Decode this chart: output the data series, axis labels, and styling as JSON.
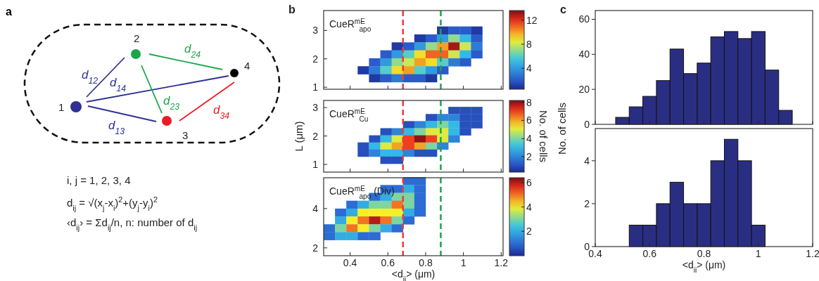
{
  "chart_data": [
    {
      "type": "other",
      "title": "a",
      "annotations": [
        "1",
        "2",
        "3",
        "4",
        "d$_{12}$",
        "d$_{14}$",
        "d$_{13}$",
        "d$_{23}$",
        "d$_{24}$",
        "d$_{34}$",
        "i, j = 1, 2, 3, 4",
        "d$_{ij}$ = √(x$_{j}$-x$_{i}$)$^{2}$+(y$_{j}$-y$_{i}$)$^{2}$",
        "‹d$_{ij}$› = Σd$_{ij}$/n, n: number of d$_{ij}$"
      ]
    },
    {
      "type": "scatter",
      "title": "b",
      "marker": "square",
      "annotations": [
        "CueR$^{mE}$$_{apo}$"
      ],
      "x": [
        0.89,
        0.95,
        1.01,
        1.07,
        0.77,
        0.83,
        0.89,
        0.95,
        1.01,
        1.07,
        0.65,
        0.71,
        0.77,
        0.83,
        0.89,
        0.95,
        1.01,
        1.07,
        0.59,
        0.65,
        0.71,
        0.77,
        0.83,
        0.89,
        0.95,
        1.01,
        1.07,
        0.53,
        0.59,
        0.65,
        0.71,
        0.77,
        0.83,
        0.89,
        0.95,
        1.01,
        0.47,
        0.53,
        0.59,
        0.65,
        0.71,
        0.77,
        0.83,
        0.89,
        0.53,
        0.59,
        0.65,
        0.71,
        0.77,
        0.83
      ],
      "values": [
        3,
        3,
        3,
        3,
        2.72,
        2.72,
        2.72,
        2.72,
        2.72,
        2.72,
        2.44,
        2.44,
        2.44,
        2.44,
        2.44,
        2.44,
        2.44,
        2.44,
        2.16,
        2.16,
        2.16,
        2.16,
        2.16,
        2.16,
        2.16,
        2.16,
        2.16,
        1.88,
        1.88,
        1.88,
        1.88,
        1.88,
        1.88,
        1.88,
        1.88,
        1.88,
        1.6,
        1.6,
        1.6,
        1.6,
        1.6,
        1.6,
        1.6,
        1.6,
        1.32,
        1.32,
        1.32,
        1.32,
        1.32,
        1.32
      ],
      "cvalues": [
        1,
        2,
        2,
        1,
        1,
        2,
        4,
        7,
        5,
        2,
        1,
        2,
        4,
        7,
        10,
        13,
        8,
        3,
        2,
        4,
        6,
        9,
        11,
        11,
        8,
        5,
        2,
        2,
        4,
        7,
        8,
        10,
        9,
        6,
        3,
        2,
        1,
        3,
        6,
        9,
        10,
        6,
        4,
        2,
        1,
        2,
        3,
        2,
        2,
        1
      ],
      "xlim": [
        0.26,
        1.21
      ],
      "ylim": [
        0.93,
        3.7
      ],
      "xticks": [
        0.4,
        0.6,
        0.8,
        1,
        1.2
      ],
      "yticks": [
        1,
        2,
        3
      ],
      "tick_labels": "y",
      "clim": [
        0.5,
        13.6
      ],
      "cticks": [
        4,
        8,
        12
      ],
      "ref_lines": [
        {
          "axis": "x",
          "value": 0.68,
          "color": "#ee3b3b",
          "line_style": "dashed"
        },
        {
          "axis": "x",
          "value": 0.88,
          "color": "#1aa64a",
          "line_style": "dashed"
        }
      ]
    },
    {
      "type": "scatter",
      "marker": "square",
      "ylabel": "L (μm)",
      "clabel": "No. of cells",
      "annotations": [
        "CueR$^{mE}$$_{Cu}$"
      ],
      "x": [
        0.95,
        1.01,
        1.07,
        0.83,
        0.89,
        0.95,
        1.01,
        1.07,
        0.71,
        0.77,
        0.83,
        0.89,
        0.95,
        1.01,
        1.07,
        0.59,
        0.65,
        0.71,
        0.77,
        0.83,
        0.89,
        0.95,
        1.01,
        0.53,
        0.59,
        0.65,
        0.71,
        0.77,
        0.83,
        0.89,
        0.95,
        0.47,
        0.53,
        0.59,
        0.65,
        0.71,
        0.77,
        0.83,
        0.89,
        0.47,
        0.53,
        0.59,
        0.65,
        0.71,
        0.77,
        0.83,
        0.59,
        0.65
      ],
      "values": [
        2.9,
        2.9,
        2.9,
        2.65,
        2.65,
        2.65,
        2.65,
        2.65,
        2.4,
        2.4,
        2.4,
        2.4,
        2.4,
        2.4,
        2.4,
        2.15,
        2.15,
        2.15,
        2.15,
        2.15,
        2.15,
        2.15,
        2.15,
        1.9,
        1.9,
        1.9,
        1.9,
        1.9,
        1.9,
        1.9,
        1.9,
        1.65,
        1.65,
        1.65,
        1.65,
        1.65,
        1.65,
        1.65,
        1.65,
        1.4,
        1.4,
        1.4,
        1.4,
        1.4,
        1.4,
        1.4,
        1.15,
        1.15
      ],
      "cvalues": [
        1,
        1,
        1,
        1,
        2,
        2,
        1,
        1,
        1,
        2,
        3,
        4,
        3,
        1,
        1,
        1,
        2,
        3,
        4,
        5,
        5,
        3,
        1,
        1,
        3,
        5,
        7,
        8,
        7,
        5,
        2,
        1,
        3,
        5,
        6,
        7,
        6,
        4,
        2,
        1,
        2,
        3,
        3,
        2,
        1,
        1,
        1,
        1
      ],
      "xlim": [
        0.26,
        1.21
      ],
      "ylim": [
        0.73,
        3.25
      ],
      "xticks": [
        0.4,
        0.6,
        0.8,
        1,
        1.2
      ],
      "yticks": [
        1,
        2,
        3
      ],
      "tick_labels": "y",
      "clim": [
        0.3,
        8.2
      ],
      "cticks": [
        2,
        4,
        6,
        8
      ],
      "ref_lines": [
        {
          "axis": "x",
          "value": 0.68,
          "color": "#ee3b3b",
          "line_style": "dashed"
        },
        {
          "axis": "x",
          "value": 0.88,
          "color": "#1aa64a",
          "line_style": "dashed"
        }
      ]
    },
    {
      "type": "scatter",
      "marker": "square",
      "xlabel": "<d$_{ii}$> (μm)",
      "annotations": [
        "CueR$^{mE}$$_{apo}$ (Div)"
      ],
      "x": [
        0.71,
        0.77,
        0.59,
        0.65,
        0.71,
        0.77,
        0.53,
        0.59,
        0.65,
        0.71,
        0.77,
        0.41,
        0.47,
        0.53,
        0.59,
        0.65,
        0.71,
        0.77,
        0.35,
        0.41,
        0.47,
        0.53,
        0.59,
        0.65,
        0.71,
        0.77,
        0.35,
        0.41,
        0.47,
        0.53,
        0.59,
        0.65,
        0.71,
        0.29,
        0.35,
        0.41,
        0.47,
        0.53,
        0.59,
        0.65,
        0.29,
        0.35,
        0.41,
        0.47,
        0.53
      ],
      "values": [
        5.4,
        5.4,
        5,
        5,
        5,
        5,
        4.6,
        4.6,
        4.6,
        4.6,
        4.6,
        4.2,
        4.2,
        4.2,
        4.2,
        4.2,
        4.2,
        4.2,
        3.8,
        3.8,
        3.8,
        3.8,
        3.8,
        3.8,
        3.8,
        3.8,
        3.4,
        3.4,
        3.4,
        3.4,
        3.4,
        3.4,
        3.4,
        3,
        3,
        3,
        3,
        3,
        3,
        3,
        2.6,
        2.6,
        2.6,
        2.6,
        2.6
      ],
      "cvalues": [
        1,
        1,
        1,
        1,
        2,
        1,
        1,
        2,
        3,
        3,
        1,
        1,
        2,
        3,
        3,
        5,
        3,
        1,
        1,
        2,
        4,
        4,
        4,
        4,
        2,
        1,
        2,
        4,
        5,
        6,
        5,
        3,
        1,
        1,
        3,
        5,
        4,
        3,
        2,
        1,
        1,
        2,
        2,
        1,
        1
      ],
      "xlim": [
        0.26,
        1.21
      ],
      "ylim": [
        1.6,
        5.57
      ],
      "xticks": [
        0.4,
        0.6,
        0.8,
        1,
        1.2
      ],
      "yticks": [
        2,
        4
      ],
      "clim": [
        0,
        6.4
      ],
      "cticks": [
        2,
        4,
        6
      ],
      "ref_lines": [
        {
          "axis": "x",
          "value": 0.68,
          "color": "#ee3b3b",
          "line_style": "dashed"
        },
        {
          "axis": "x",
          "value": 0.88,
          "color": "#1aa64a",
          "line_style": "dashed"
        }
      ]
    },
    {
      "type": "histogram",
      "title": "c",
      "ylabel": "No. of cells",
      "bins": [
        0.475,
        0.525,
        0.575,
        0.625,
        0.675,
        0.725,
        0.775,
        0.825,
        0.875,
        0.925,
        0.975,
        1.025,
        1.075,
        1.125
      ],
      "values": [
        4,
        10,
        16,
        25,
        43,
        29,
        35,
        50,
        53,
        49,
        53,
        31,
        8
      ],
      "color": "#2a2e82",
      "xlim": [
        0.4,
        1.2
      ],
      "ylim": [
        0,
        65
      ],
      "xticks": [
        0.4,
        0.6,
        0.8,
        1,
        1.2
      ],
      "yticks": [
        0,
        20,
        40,
        60
      ],
      "tick_labels": "y"
    },
    {
      "type": "histogram",
      "xlabel": "<d$_{ii}$> (μm)",
      "bins": [
        0.525,
        0.575,
        0.625,
        0.675,
        0.725,
        0.775,
        0.825,
        0.875,
        0.925,
        0.975,
        1.025
      ],
      "values": [
        1,
        1,
        2,
        3,
        2,
        2,
        4,
        5,
        4,
        1
      ],
      "color": "#2a2e82",
      "xlim": [
        0.4,
        1.2
      ],
      "ylim": [
        0,
        5.5
      ],
      "xticks": [
        0.4,
        0.6,
        0.8,
        1,
        1.2
      ],
      "yticks": [
        0,
        2,
        4
      ]
    }
  ]
}
